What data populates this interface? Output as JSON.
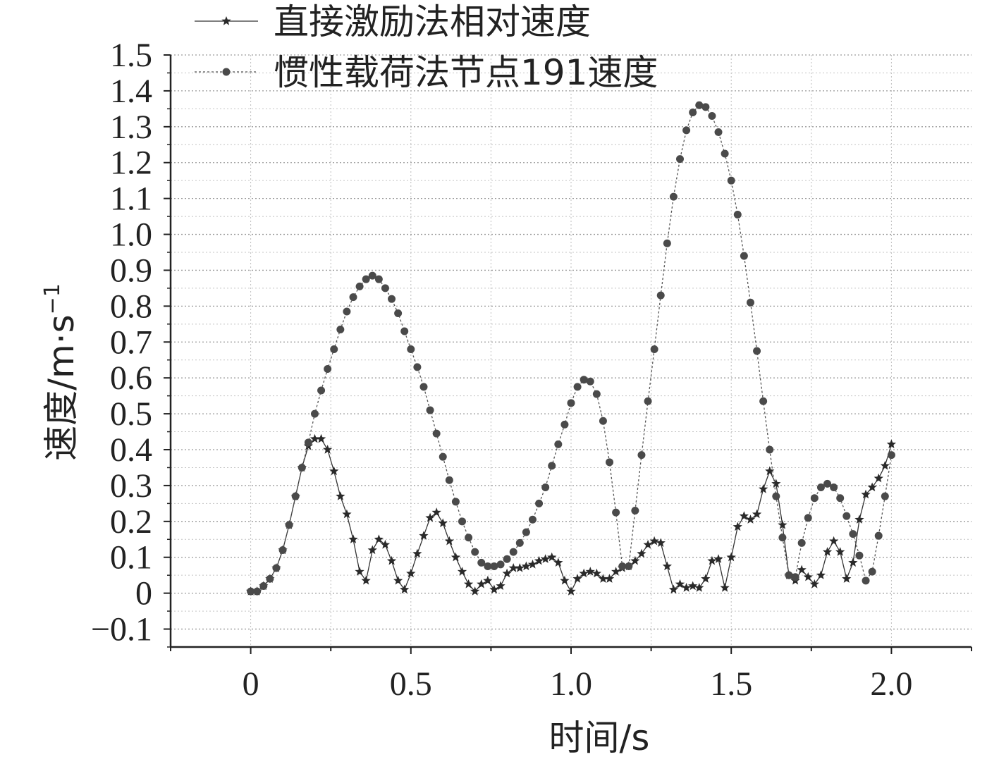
{
  "chart_data": {
    "type": "line",
    "xlabel": "时间/s",
    "ylabel": "速度/m·s",
    "ylabel_superscript": "−1",
    "xlim": [
      -0.25,
      2.25
    ],
    "ylim": [
      -0.15,
      1.5
    ],
    "x_ticks": [
      0,
      0.5,
      1.0,
      1.5,
      2.0
    ],
    "x_tick_labels": [
      "0",
      "0.5",
      "1.0",
      "1.5",
      "2.0"
    ],
    "y_ticks": [
      -0.1,
      0,
      0.1,
      0.2,
      0.3,
      0.4,
      0.5,
      0.6,
      0.7,
      0.8,
      0.9,
      1.0,
      1.1,
      1.2,
      1.3,
      1.4,
      1.5
    ],
    "y_tick_labels": [
      "−0.1",
      "0",
      "0.1",
      "0.2",
      "0.3",
      "0.4",
      "0.5",
      "0.6",
      "0.7",
      "0.8",
      "0.9",
      "1.0",
      "1.1",
      "1.2",
      "1.3",
      "1.4",
      "1.5"
    ],
    "grid": true,
    "legend_position": "top-left",
    "series": [
      {
        "name": "直接激励法相对速度",
        "marker": "star",
        "line_style": "solid",
        "color": "#333333",
        "x": [
          0,
          0.02,
          0.04,
          0.06,
          0.08,
          0.1,
          0.12,
          0.14,
          0.16,
          0.18,
          0.2,
          0.22,
          0.24,
          0.26,
          0.28,
          0.3,
          0.32,
          0.34,
          0.36,
          0.38,
          0.4,
          0.42,
          0.44,
          0.46,
          0.48,
          0.5,
          0.52,
          0.54,
          0.56,
          0.58,
          0.6,
          0.62,
          0.64,
          0.66,
          0.68,
          0.7,
          0.72,
          0.74,
          0.76,
          0.78,
          0.8,
          0.82,
          0.84,
          0.86,
          0.88,
          0.9,
          0.92,
          0.94,
          0.96,
          0.98,
          1.0,
          1.02,
          1.04,
          1.06,
          1.08,
          1.1,
          1.12,
          1.14,
          1.16,
          1.18,
          1.2,
          1.22,
          1.24,
          1.26,
          1.28,
          1.3,
          1.32,
          1.34,
          1.36,
          1.38,
          1.4,
          1.42,
          1.44,
          1.46,
          1.48,
          1.5,
          1.52,
          1.54,
          1.56,
          1.58,
          1.6,
          1.62,
          1.64,
          1.66,
          1.68,
          1.7,
          1.72,
          1.74,
          1.76,
          1.78,
          1.8,
          1.82,
          1.84,
          1.86,
          1.88,
          1.9,
          1.92,
          1.94,
          1.96,
          1.98,
          2.0
        ],
        "y": [
          0.005,
          0.005,
          0.02,
          0.04,
          0.07,
          0.12,
          0.19,
          0.27,
          0.35,
          0.41,
          0.43,
          0.43,
          0.4,
          0.34,
          0.27,
          0.22,
          0.15,
          0.06,
          0.035,
          0.12,
          0.15,
          0.135,
          0.09,
          0.035,
          0.01,
          0.055,
          0.11,
          0.16,
          0.21,
          0.225,
          0.195,
          0.145,
          0.1,
          0.06,
          0.025,
          0.005,
          0.025,
          0.035,
          0.01,
          0.02,
          0.055,
          0.07,
          0.07,
          0.075,
          0.08,
          0.09,
          0.095,
          0.1,
          0.085,
          0.035,
          0.005,
          0.04,
          0.055,
          0.06,
          0.055,
          0.04,
          0.04,
          0.06,
          0.07,
          0.075,
          0.09,
          0.11,
          0.135,
          0.145,
          0.14,
          0.075,
          0.01,
          0.025,
          0.015,
          0.02,
          0.015,
          0.04,
          0.09,
          0.095,
          0.015,
          0.1,
          0.185,
          0.215,
          0.205,
          0.22,
          0.29,
          0.34,
          0.305,
          0.19,
          0.05,
          0.035,
          0.065,
          0.045,
          0.025,
          0.05,
          0.115,
          0.145,
          0.115,
          0.04,
          0.085,
          0.205,
          0.275,
          0.295,
          0.32,
          0.355,
          0.415
        ]
      },
      {
        "name": "惯性载荷法节点191速度",
        "marker": "circle",
        "line_style": "dotted",
        "color": "#555555",
        "x": [
          0,
          0.02,
          0.04,
          0.06,
          0.08,
          0.1,
          0.12,
          0.14,
          0.16,
          0.18,
          0.2,
          0.22,
          0.24,
          0.26,
          0.28,
          0.3,
          0.32,
          0.34,
          0.36,
          0.38,
          0.4,
          0.42,
          0.44,
          0.46,
          0.48,
          0.5,
          0.52,
          0.54,
          0.56,
          0.58,
          0.6,
          0.62,
          0.64,
          0.66,
          0.68,
          0.7,
          0.72,
          0.74,
          0.76,
          0.78,
          0.8,
          0.82,
          0.84,
          0.86,
          0.88,
          0.9,
          0.92,
          0.94,
          0.96,
          0.98,
          1.0,
          1.02,
          1.04,
          1.06,
          1.08,
          1.1,
          1.12,
          1.14,
          1.16,
          1.18,
          1.2,
          1.22,
          1.24,
          1.26,
          1.28,
          1.3,
          1.32,
          1.34,
          1.36,
          1.38,
          1.4,
          1.42,
          1.44,
          1.46,
          1.48,
          1.5,
          1.52,
          1.54,
          1.56,
          1.58,
          1.6,
          1.62,
          1.64,
          1.66,
          1.68,
          1.7,
          1.72,
          1.74,
          1.76,
          1.78,
          1.8,
          1.82,
          1.84,
          1.86,
          1.88,
          1.9,
          1.92,
          1.94,
          1.96,
          1.98,
          2.0
        ],
        "y": [
          0.005,
          0.005,
          0.02,
          0.04,
          0.07,
          0.12,
          0.19,
          0.27,
          0.35,
          0.42,
          0.5,
          0.565,
          0.625,
          0.68,
          0.735,
          0.785,
          0.825,
          0.855,
          0.875,
          0.885,
          0.875,
          0.85,
          0.82,
          0.78,
          0.73,
          0.68,
          0.63,
          0.575,
          0.51,
          0.445,
          0.38,
          0.315,
          0.255,
          0.2,
          0.155,
          0.115,
          0.085,
          0.075,
          0.075,
          0.08,
          0.095,
          0.115,
          0.14,
          0.17,
          0.205,
          0.25,
          0.295,
          0.355,
          0.415,
          0.47,
          0.53,
          0.575,
          0.595,
          0.59,
          0.555,
          0.48,
          0.365,
          0.225,
          0.075,
          0.075,
          0.23,
          0.385,
          0.535,
          0.68,
          0.83,
          0.975,
          1.105,
          1.21,
          1.29,
          1.34,
          1.36,
          1.355,
          1.33,
          1.285,
          1.225,
          1.15,
          1.055,
          0.94,
          0.81,
          0.675,
          0.535,
          0.4,
          0.27,
          0.155,
          0.05,
          0.045,
          0.14,
          0.21,
          0.265,
          0.295,
          0.305,
          0.295,
          0.265,
          0.215,
          0.165,
          0.105,
          0.035,
          0.06,
          0.16,
          0.27,
          0.385
        ]
      }
    ]
  }
}
